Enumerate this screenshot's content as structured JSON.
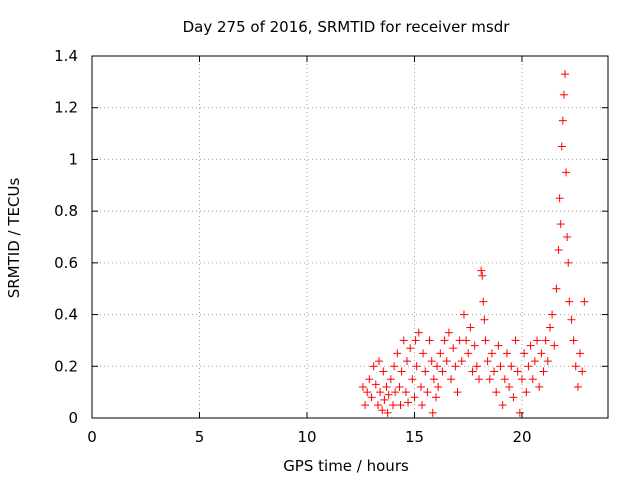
{
  "chart_data": {
    "type": "scatter",
    "title": "Day 275 of 2016, SRMTID for receiver msdr",
    "xlabel": "GPS time / hours",
    "ylabel": "SRMTID / TECUs",
    "xlim": [
      0,
      24
    ],
    "ylim": [
      0,
      1.4
    ],
    "grid": true,
    "marker": "+",
    "x_ticks": [
      0,
      5,
      10,
      15,
      20
    ],
    "x_tick_labels": [
      "0",
      "5",
      "10",
      "15",
      "20"
    ],
    "y_ticks": [
      0,
      0.2,
      0.4,
      0.6,
      0.8,
      1,
      1.2,
      1.4
    ],
    "y_tick_labels": [
      "0",
      "0.2",
      "0.4",
      "0.6",
      "0.8",
      "1",
      "1.2",
      "1.4"
    ],
    "series": [
      {
        "name": "SRMTID",
        "color": "#ff0000",
        "points": [
          [
            12.6,
            0.12
          ],
          [
            12.7,
            0.05
          ],
          [
            12.8,
            0.1
          ],
          [
            12.9,
            0.15
          ],
          [
            13.0,
            0.08
          ],
          [
            13.1,
            0.2
          ],
          [
            13.2,
            0.13
          ],
          [
            13.3,
            0.05
          ],
          [
            13.35,
            0.22
          ],
          [
            13.4,
            0.1
          ],
          [
            13.5,
            0.03
          ],
          [
            13.55,
            0.18
          ],
          [
            13.6,
            0.07
          ],
          [
            13.7,
            0.12
          ],
          [
            13.75,
            0.02
          ],
          [
            13.8,
            0.09
          ],
          [
            13.9,
            0.15
          ],
          [
            14.0,
            0.05
          ],
          [
            14.05,
            0.2
          ],
          [
            14.1,
            0.1
          ],
          [
            14.2,
            0.25
          ],
          [
            14.3,
            0.12
          ],
          [
            14.35,
            0.05
          ],
          [
            14.4,
            0.18
          ],
          [
            14.5,
            0.3
          ],
          [
            14.6,
            0.1
          ],
          [
            14.65,
            0.22
          ],
          [
            14.7,
            0.06
          ],
          [
            14.8,
            0.27
          ],
          [
            14.9,
            0.15
          ],
          [
            15.0,
            0.08
          ],
          [
            15.05,
            0.3
          ],
          [
            15.1,
            0.2
          ],
          [
            15.2,
            0.33
          ],
          [
            15.3,
            0.12
          ],
          [
            15.35,
            0.05
          ],
          [
            15.4,
            0.25
          ],
          [
            15.5,
            0.18
          ],
          [
            15.6,
            0.1
          ],
          [
            15.7,
            0.3
          ],
          [
            15.8,
            0.22
          ],
          [
            15.85,
            0.02
          ],
          [
            15.9,
            0.15
          ],
          [
            16.0,
            0.08
          ],
          [
            16.05,
            0.2
          ],
          [
            16.1,
            0.12
          ],
          [
            16.2,
            0.25
          ],
          [
            16.3,
            0.18
          ],
          [
            16.4,
            0.3
          ],
          [
            16.5,
            0.22
          ],
          [
            16.6,
            0.33
          ],
          [
            16.7,
            0.15
          ],
          [
            16.8,
            0.27
          ],
          [
            16.9,
            0.2
          ],
          [
            17.0,
            0.1
          ],
          [
            17.1,
            0.3
          ],
          [
            17.2,
            0.22
          ],
          [
            17.3,
            0.4
          ],
          [
            17.4,
            0.3
          ],
          [
            17.5,
            0.25
          ],
          [
            17.6,
            0.35
          ],
          [
            17.7,
            0.18
          ],
          [
            17.8,
            0.28
          ],
          [
            17.9,
            0.2
          ],
          [
            18.0,
            0.15
          ],
          [
            18.1,
            0.57
          ],
          [
            18.15,
            0.55
          ],
          [
            18.2,
            0.45
          ],
          [
            18.25,
            0.38
          ],
          [
            18.3,
            0.3
          ],
          [
            18.4,
            0.22
          ],
          [
            18.5,
            0.15
          ],
          [
            18.6,
            0.25
          ],
          [
            18.7,
            0.18
          ],
          [
            18.8,
            0.1
          ],
          [
            18.9,
            0.28
          ],
          [
            19.0,
            0.2
          ],
          [
            19.1,
            0.05
          ],
          [
            19.2,
            0.15
          ],
          [
            19.3,
            0.25
          ],
          [
            19.4,
            0.12
          ],
          [
            19.5,
            0.2
          ],
          [
            19.6,
            0.08
          ],
          [
            19.7,
            0.3
          ],
          [
            19.8,
            0.18
          ],
          [
            19.9,
            0.02
          ],
          [
            20.0,
            0.15
          ],
          [
            20.1,
            0.25
          ],
          [
            20.2,
            0.1
          ],
          [
            20.3,
            0.2
          ],
          [
            20.4,
            0.28
          ],
          [
            20.5,
            0.15
          ],
          [
            20.6,
            0.22
          ],
          [
            20.7,
            0.3
          ],
          [
            20.8,
            0.12
          ],
          [
            20.9,
            0.25
          ],
          [
            21.0,
            0.18
          ],
          [
            21.1,
            0.3
          ],
          [
            21.2,
            0.22
          ],
          [
            21.3,
            0.35
          ],
          [
            21.4,
            0.4
          ],
          [
            21.5,
            0.28
          ],
          [
            21.6,
            0.5
          ],
          [
            21.7,
            0.65
          ],
          [
            21.75,
            0.85
          ],
          [
            21.8,
            0.75
          ],
          [
            21.85,
            1.05
          ],
          [
            21.9,
            1.15
          ],
          [
            21.95,
            1.25
          ],
          [
            22.0,
            1.33
          ],
          [
            22.05,
            0.95
          ],
          [
            22.1,
            0.7
          ],
          [
            22.15,
            0.6
          ],
          [
            22.2,
            0.45
          ],
          [
            22.3,
            0.38
          ],
          [
            22.4,
            0.3
          ],
          [
            22.5,
            0.2
          ],
          [
            22.6,
            0.12
          ],
          [
            22.7,
            0.25
          ],
          [
            22.8,
            0.18
          ],
          [
            22.9,
            0.45
          ]
        ]
      }
    ]
  }
}
